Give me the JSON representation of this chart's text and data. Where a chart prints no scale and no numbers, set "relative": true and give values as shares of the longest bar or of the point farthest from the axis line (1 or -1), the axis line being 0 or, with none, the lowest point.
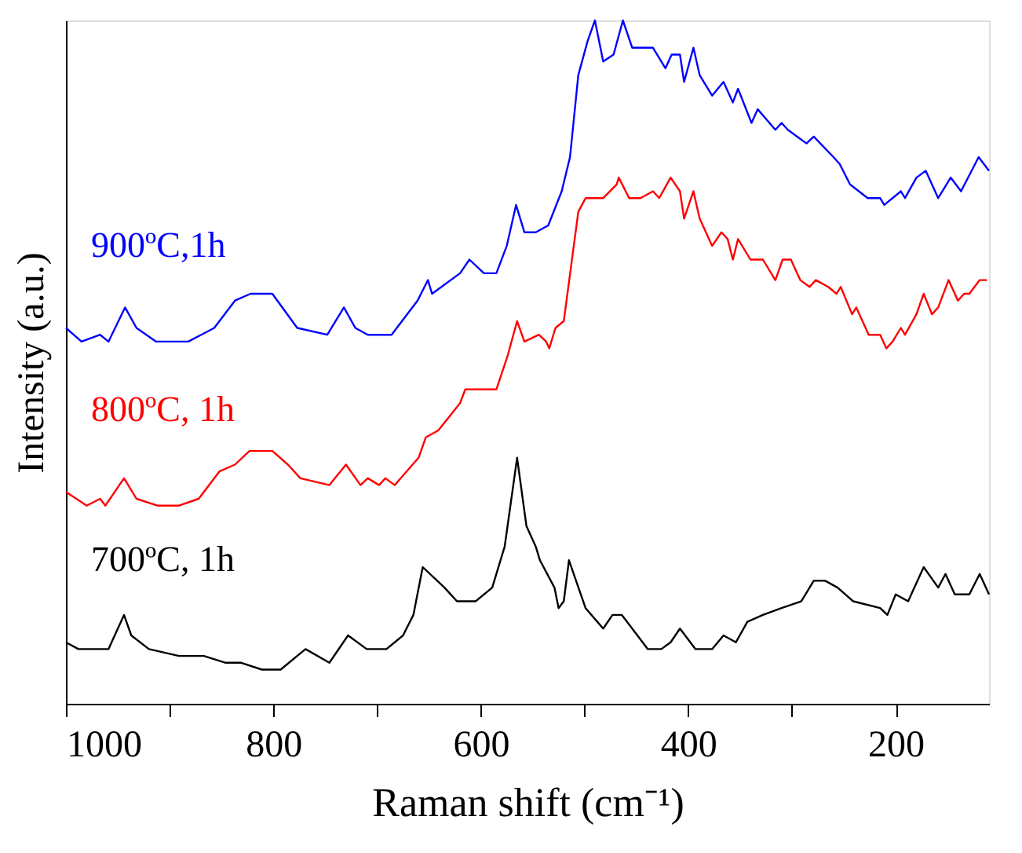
{
  "chart_data": {
    "type": "line",
    "xlabel": "Raman shift (cm⁻¹)",
    "ylabel": "Intensity (a.u.)",
    "relative": true,
    "legend": false,
    "grid": false,
    "marker": "none",
    "line_style": "solid",
    "xlim": [
      1000,
      110
    ],
    "xticks": [
      1000,
      {
        "value": 900,
        "label": null
      },
      800,
      {
        "value": 700,
        "label": null
      },
      600,
      {
        "value": 500,
        "label": null
      },
      400,
      {
        "value": 300,
        "label": null
      },
      200
    ],
    "series": [
      {
        "name": "900ºC,1h",
        "color": "#0000ff",
        "x": [
          1000,
          985,
          967,
          959,
          943,
          932,
          913,
          882,
          857,
          837,
          822,
          801,
          777,
          748,
          732,
          721,
          709,
          686,
          661,
          651,
          647,
          620,
          611,
          597,
          585,
          575,
          566,
          558,
          547,
          535,
          522,
          514,
          506,
          497,
          490,
          482,
          472,
          463,
          454,
          434,
          422,
          416,
          408,
          404,
          395,
          389,
          377,
          366,
          357,
          352,
          339,
          333,
          316,
          310,
          304,
          286,
          279,
          260,
          254,
          244,
          227,
          215,
          211,
          195,
          191,
          180,
          171,
          159,
          147,
          137,
          120,
          110
        ],
        "values": [
          0.55,
          0.53,
          0.54,
          0.53,
          0.58,
          0.55,
          0.53,
          0.53,
          0.55,
          0.59,
          0.6,
          0.6,
          0.55,
          0.54,
          0.58,
          0.55,
          0.54,
          0.54,
          0.59,
          0.62,
          0.6,
          0.63,
          0.65,
          0.63,
          0.63,
          0.67,
          0.73,
          0.69,
          0.69,
          0.7,
          0.75,
          0.8,
          0.92,
          0.97,
          1.0,
          0.94,
          0.95,
          1.0,
          0.96,
          0.96,
          0.93,
          0.95,
          0.95,
          0.91,
          0.96,
          0.92,
          0.89,
          0.91,
          0.88,
          0.9,
          0.85,
          0.87,
          0.84,
          0.85,
          0.84,
          0.82,
          0.83,
          0.8,
          0.79,
          0.76,
          0.74,
          0.74,
          0.73,
          0.75,
          0.74,
          0.77,
          0.78,
          0.74,
          0.77,
          0.75,
          0.8,
          0.78
        ]
      },
      {
        "name": "800ºC, 1h",
        "color": "#ff0000",
        "x": [
          1000,
          980,
          967,
          962,
          944,
          932,
          912,
          891,
          872,
          852,
          837,
          823,
          801,
          786,
          774,
          746,
          730,
          716,
          709,
          698,
          692,
          683,
          660,
          653,
          641,
          620,
          615,
          585,
          574,
          565,
          558,
          544,
          537,
          534,
          528,
          520,
          506,
          499,
          482,
          469,
          467,
          457,
          446,
          434,
          428,
          417,
          408,
          404,
          395,
          389,
          377,
          368,
          362,
          357,
          352,
          340,
          328,
          316,
          309,
          301,
          292,
          283,
          277,
          265,
          257,
          253,
          242,
          238,
          226,
          215,
          209,
          203,
          195,
          191,
          180,
          173,
          165,
          159,
          149,
          140,
          134,
          129,
          119,
          112
        ],
        "values": [
          0.31,
          0.29,
          0.3,
          0.29,
          0.33,
          0.3,
          0.29,
          0.29,
          0.3,
          0.34,
          0.35,
          0.37,
          0.37,
          0.35,
          0.33,
          0.32,
          0.35,
          0.32,
          0.33,
          0.32,
          0.33,
          0.32,
          0.36,
          0.39,
          0.4,
          0.44,
          0.46,
          0.46,
          0.51,
          0.56,
          0.53,
          0.54,
          0.53,
          0.52,
          0.55,
          0.56,
          0.72,
          0.74,
          0.74,
          0.76,
          0.77,
          0.74,
          0.74,
          0.75,
          0.74,
          0.77,
          0.75,
          0.71,
          0.75,
          0.71,
          0.67,
          0.69,
          0.68,
          0.65,
          0.68,
          0.65,
          0.65,
          0.62,
          0.65,
          0.65,
          0.62,
          0.61,
          0.62,
          0.61,
          0.6,
          0.61,
          0.57,
          0.58,
          0.54,
          0.54,
          0.52,
          0.53,
          0.55,
          0.54,
          0.57,
          0.6,
          0.57,
          0.58,
          0.62,
          0.59,
          0.6,
          0.6,
          0.62,
          0.62
        ]
      },
      {
        "name": "700ºC, 1h",
        "color": "#000000",
        "x": [
          1000,
          988,
          977,
          959,
          944,
          937,
          920,
          891,
          867,
          846,
          831,
          811,
          793,
          769,
          746,
          728,
          710,
          691,
          675,
          665,
          656,
          635,
          623,
          611,
          605,
          589,
          577,
          565,
          556,
          547,
          543,
          529,
          525,
          520,
          515,
          499,
          482,
          473,
          464,
          449,
          439,
          426,
          417,
          408,
          393,
          377,
          366,
          354,
          343,
          328,
          310,
          291,
          279,
          268,
          256,
          241,
          215,
          208,
          200,
          188,
          173,
          159,
          152,
          143,
          129,
          119,
          110
        ],
        "values": [
          0.09,
          0.08,
          0.08,
          0.08,
          0.13,
          0.1,
          0.08,
          0.07,
          0.07,
          0.06,
          0.06,
          0.05,
          0.05,
          0.08,
          0.06,
          0.1,
          0.08,
          0.08,
          0.1,
          0.13,
          0.2,
          0.17,
          0.15,
          0.15,
          0.15,
          0.17,
          0.23,
          0.36,
          0.26,
          0.23,
          0.21,
          0.17,
          0.14,
          0.15,
          0.21,
          0.14,
          0.11,
          0.13,
          0.13,
          0.1,
          0.08,
          0.08,
          0.09,
          0.11,
          0.08,
          0.08,
          0.1,
          0.09,
          0.12,
          0.13,
          0.14,
          0.15,
          0.18,
          0.18,
          0.17,
          0.15,
          0.14,
          0.13,
          0.16,
          0.15,
          0.2,
          0.17,
          0.19,
          0.16,
          0.16,
          0.19,
          0.16
        ]
      }
    ]
  }
}
